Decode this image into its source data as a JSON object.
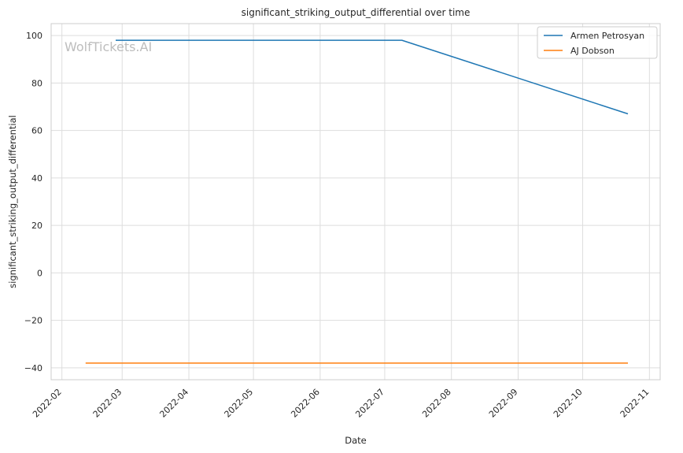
{
  "chart_data": {
    "type": "line",
    "title": "significant_striking_output_differential over time",
    "xlabel": "Date",
    "ylabel": "significant_striking_output_differential",
    "watermark": "WolfTickets.AI",
    "grid": true,
    "legend_position": "top-right",
    "xlim": [
      "2022-01-27",
      "2022-11-06"
    ],
    "ylim": [
      -45,
      105
    ],
    "x_ticks": [
      "2022-02-01",
      "2022-03-01",
      "2022-04-01",
      "2022-05-01",
      "2022-06-01",
      "2022-07-01",
      "2022-08-01",
      "2022-09-01",
      "2022-10-01",
      "2022-11-01"
    ],
    "x_tick_labels": [
      "2022-02",
      "2022-03",
      "2022-04",
      "2022-05",
      "2022-06",
      "2022-07",
      "2022-08",
      "2022-09",
      "2022-10",
      "2022-11"
    ],
    "y_ticks": [
      100,
      80,
      60,
      40,
      20,
      0,
      -20,
      -40
    ],
    "y_tick_labels": [
      "100",
      "80",
      "60",
      "40",
      "20",
      "0",
      "−20",
      "−40"
    ],
    "series": [
      {
        "name": "Armen Petrosyan",
        "color": "#1f77b4",
        "x": [
          "2022-02-26",
          "2022-07-09",
          "2022-10-22"
        ],
        "y": [
          98,
          98,
          67
        ]
      },
      {
        "name": "AJ Dobson",
        "color": "#ff7f0e",
        "x": [
          "2022-02-12",
          "2022-10-22"
        ],
        "y": [
          -38,
          -38
        ]
      }
    ]
  }
}
